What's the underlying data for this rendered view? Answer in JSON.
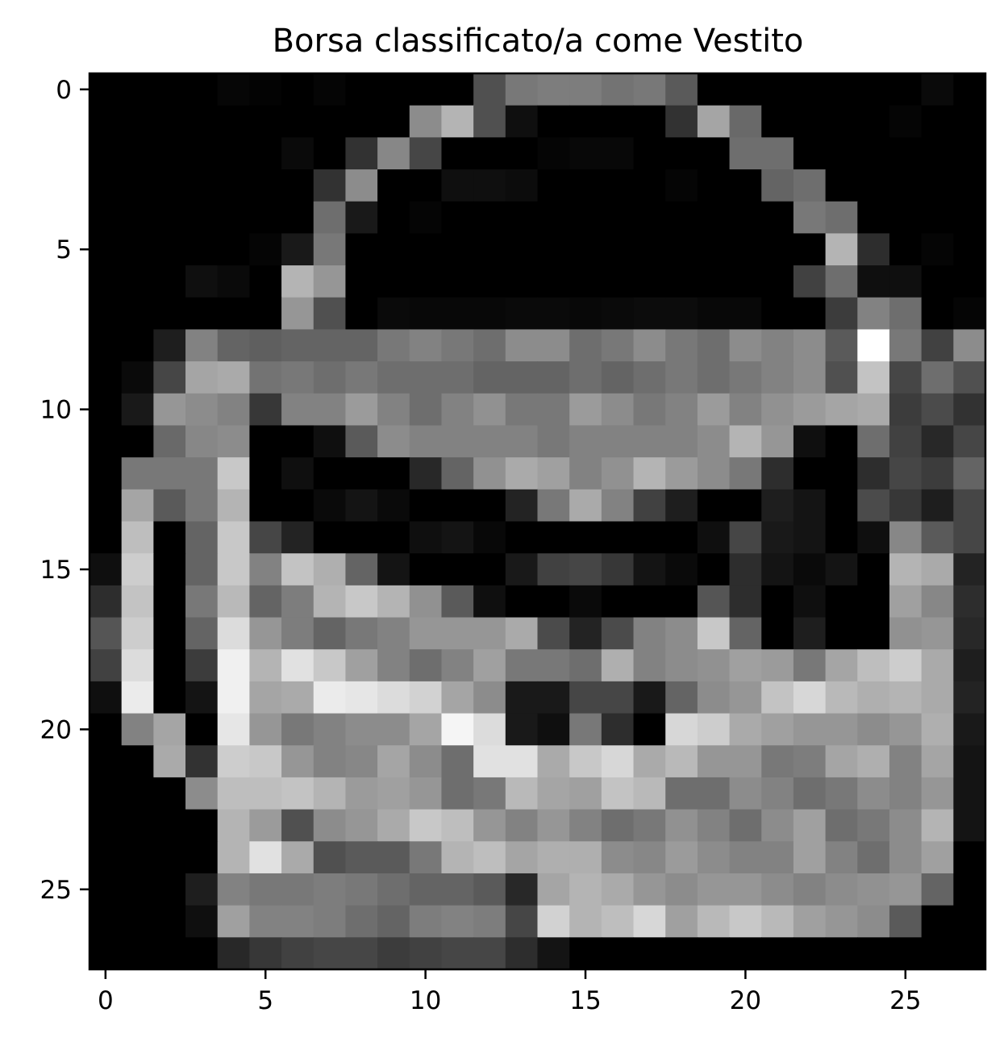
{
  "chart_data": {
    "type": "heatmap",
    "title": "Borsa classificato/a come Vestito",
    "xlabel": "",
    "ylabel": "",
    "colormap": "gray",
    "value_range": [
      0,
      255
    ],
    "xlim": [
      -0.5,
      27.5
    ],
    "ylim": [
      27.5,
      -0.5
    ],
    "x_ticks": [
      0,
      5,
      10,
      15,
      20,
      25
    ],
    "y_ticks": [
      0,
      5,
      10,
      15,
      20,
      25
    ],
    "grid": false,
    "rows": [
      [
        0,
        0,
        0,
        0,
        6,
        3,
        0,
        5,
        0,
        0,
        0,
        0,
        80,
        120,
        125,
        125,
        115,
        120,
        90,
        0,
        0,
        0,
        0,
        0,
        0,
        0,
        10,
        0
      ],
      [
        0,
        0,
        0,
        0,
        0,
        0,
        0,
        0,
        0,
        0,
        140,
        180,
        80,
        15,
        0,
        0,
        0,
        0,
        50,
        165,
        105,
        0,
        0,
        0,
        0,
        5,
        0,
        0
      ],
      [
        0,
        0,
        0,
        0,
        0,
        0,
        10,
        0,
        50,
        135,
        70,
        0,
        0,
        0,
        5,
        8,
        8,
        0,
        0,
        0,
        110,
        110,
        0,
        0,
        0,
        0,
        0,
        0
      ],
      [
        0,
        0,
        0,
        0,
        0,
        0,
        0,
        50,
        140,
        0,
        0,
        15,
        15,
        12,
        0,
        0,
        0,
        0,
        5,
        0,
        0,
        100,
        110,
        0,
        0,
        0,
        0,
        0
      ],
      [
        0,
        0,
        0,
        0,
        0,
        0,
        0,
        110,
        25,
        0,
        5,
        0,
        0,
        0,
        0,
        0,
        0,
        0,
        0,
        0,
        0,
        0,
        120,
        110,
        0,
        0,
        0,
        0
      ],
      [
        0,
        0,
        0,
        0,
        0,
        5,
        25,
        120,
        0,
        0,
        0,
        0,
        0,
        0,
        0,
        0,
        0,
        0,
        0,
        0,
        0,
        0,
        0,
        180,
        45,
        0,
        5,
        0
      ],
      [
        0,
        0,
        0,
        15,
        10,
        0,
        180,
        150,
        0,
        0,
        0,
        0,
        0,
        0,
        0,
        0,
        0,
        0,
        0,
        0,
        0,
        0,
        65,
        110,
        15,
        15,
        0,
        0
      ],
      [
        0,
        0,
        0,
        0,
        0,
        0,
        150,
        80,
        0,
        10,
        8,
        8,
        8,
        10,
        10,
        8,
        10,
        12,
        12,
        8,
        8,
        0,
        0,
        60,
        130,
        110,
        0,
        5
      ],
      [
        0,
        0,
        30,
        130,
        100,
        95,
        100,
        100,
        100,
        120,
        130,
        120,
        110,
        140,
        140,
        110,
        120,
        140,
        120,
        110,
        140,
        130,
        140,
        90,
        255,
        120,
        65,
        140
      ],
      [
        0,
        10,
        70,
        165,
        170,
        115,
        120,
        110,
        120,
        110,
        110,
        110,
        100,
        100,
        100,
        110,
        100,
        110,
        120,
        110,
        120,
        130,
        140,
        80,
        195,
        70,
        110,
        80
      ],
      [
        0,
        25,
        150,
        140,
        130,
        55,
        130,
        130,
        155,
        130,
        110,
        130,
        145,
        120,
        120,
        155,
        140,
        120,
        130,
        155,
        130,
        145,
        155,
        165,
        170,
        60,
        75,
        50
      ],
      [
        0,
        0,
        105,
        135,
        140,
        0,
        0,
        15,
        90,
        140,
        130,
        130,
        130,
        130,
        120,
        130,
        130,
        130,
        130,
        140,
        180,
        150,
        15,
        0,
        110,
        65,
        40,
        70
      ],
      [
        0,
        120,
        120,
        120,
        200,
        0,
        15,
        0,
        0,
        0,
        40,
        100,
        145,
        170,
        160,
        130,
        145,
        180,
        155,
        140,
        120,
        45,
        0,
        0,
        45,
        70,
        60,
        100
      ],
      [
        0,
        165,
        90,
        120,
        180,
        0,
        0,
        10,
        20,
        10,
        0,
        0,
        0,
        35,
        120,
        170,
        130,
        65,
        30,
        0,
        0,
        30,
        20,
        0,
        75,
        55,
        30,
        70
      ],
      [
        0,
        190,
        0,
        100,
        200,
        70,
        35,
        0,
        0,
        0,
        15,
        20,
        8,
        0,
        0,
        0,
        0,
        0,
        0,
        15,
        70,
        25,
        20,
        0,
        15,
        135,
        90,
        70
      ],
      [
        15,
        205,
        0,
        100,
        200,
        130,
        195,
        175,
        100,
        20,
        0,
        0,
        0,
        25,
        65,
        70,
        55,
        20,
        10,
        0,
        45,
        20,
        10,
        20,
        0,
        180,
        170,
        35
      ],
      [
        45,
        195,
        0,
        120,
        185,
        100,
        125,
        180,
        200,
        180,
        145,
        90,
        15,
        0,
        0,
        10,
        0,
        0,
        0,
        85,
        45,
        0,
        15,
        0,
        0,
        160,
        135,
        45
      ],
      [
        85,
        205,
        0,
        100,
        220,
        150,
        125,
        100,
        120,
        130,
        150,
        150,
        150,
        170,
        75,
        35,
        75,
        130,
        140,
        200,
        100,
        0,
        30,
        0,
        0,
        145,
        150,
        40
      ],
      [
        65,
        220,
        0,
        60,
        240,
        180,
        225,
        200,
        160,
        130,
        110,
        130,
        160,
        120,
        120,
        110,
        175,
        130,
        140,
        145,
        160,
        155,
        120,
        165,
        190,
        205,
        170,
        30
      ],
      [
        15,
        235,
        0,
        20,
        240,
        165,
        170,
        235,
        230,
        220,
        210,
        165,
        140,
        25,
        25,
        70,
        70,
        25,
        100,
        140,
        150,
        195,
        215,
        185,
        175,
        180,
        170,
        35
      ],
      [
        0,
        130,
        165,
        0,
        230,
        150,
        120,
        130,
        140,
        140,
        165,
        245,
        220,
        25,
        15,
        120,
        45,
        0,
        215,
        205,
        170,
        160,
        150,
        150,
        140,
        150,
        175,
        25
      ],
      [
        0,
        0,
        170,
        50,
        205,
        200,
        150,
        130,
        135,
        165,
        140,
        110,
        225,
        225,
        170,
        200,
        215,
        170,
        185,
        150,
        150,
        120,
        125,
        165,
        175,
        130,
        165,
        20
      ],
      [
        0,
        0,
        0,
        140,
        190,
        190,
        195,
        180,
        155,
        160,
        150,
        110,
        120,
        185,
        165,
        160,
        195,
        185,
        110,
        110,
        140,
        130,
        110,
        120,
        140,
        130,
        150,
        20
      ],
      [
        0,
        0,
        0,
        0,
        180,
        155,
        80,
        140,
        150,
        170,
        200,
        190,
        150,
        130,
        150,
        130,
        110,
        120,
        145,
        130,
        110,
        140,
        160,
        110,
        120,
        140,
        180,
        20
      ],
      [
        0,
        0,
        0,
        0,
        180,
        225,
        170,
        80,
        90,
        90,
        120,
        180,
        190,
        165,
        175,
        175,
        140,
        135,
        155,
        140,
        130,
        130,
        160,
        130,
        110,
        140,
        160,
        0
      ],
      [
        0,
        0,
        0,
        30,
        130,
        120,
        120,
        125,
        120,
        110,
        100,
        100,
        90,
        40,
        165,
        180,
        170,
        150,
        140,
        150,
        150,
        140,
        130,
        140,
        145,
        150,
        100,
        0
      ],
      [
        0,
        0,
        0,
        15,
        160,
        130,
        130,
        125,
        110,
        100,
        125,
        130,
        125,
        70,
        210,
        180,
        190,
        215,
        160,
        185,
        200,
        185,
        160,
        150,
        140,
        90,
        0,
        0
      ],
      [
        0,
        0,
        0,
        0,
        40,
        55,
        65,
        70,
        70,
        60,
        65,
        70,
        70,
        45,
        20,
        0,
        0,
        0,
        0,
        0,
        0,
        0,
        0,
        0,
        0,
        0,
        0,
        0
      ]
    ]
  }
}
